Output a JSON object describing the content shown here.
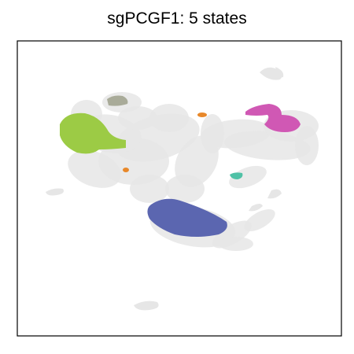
{
  "chart_data": {
    "type": "scatter",
    "title": "sgPCGF1: 5 states",
    "xlabel": "",
    "ylabel": "",
    "grid": false,
    "legend": "none",
    "background_color": "#e6e6e6",
    "series": [
      {
        "color": "#e6e6e6",
        "role": "background cells"
      },
      {
        "color": "#9ccb45"
      },
      {
        "color": "#5b66b0"
      },
      {
        "color": "#d058b4"
      },
      {
        "color": "#a9ab99"
      },
      {
        "color": "#e8882a"
      },
      {
        "color": "#4fc1a6"
      }
    ]
  }
}
